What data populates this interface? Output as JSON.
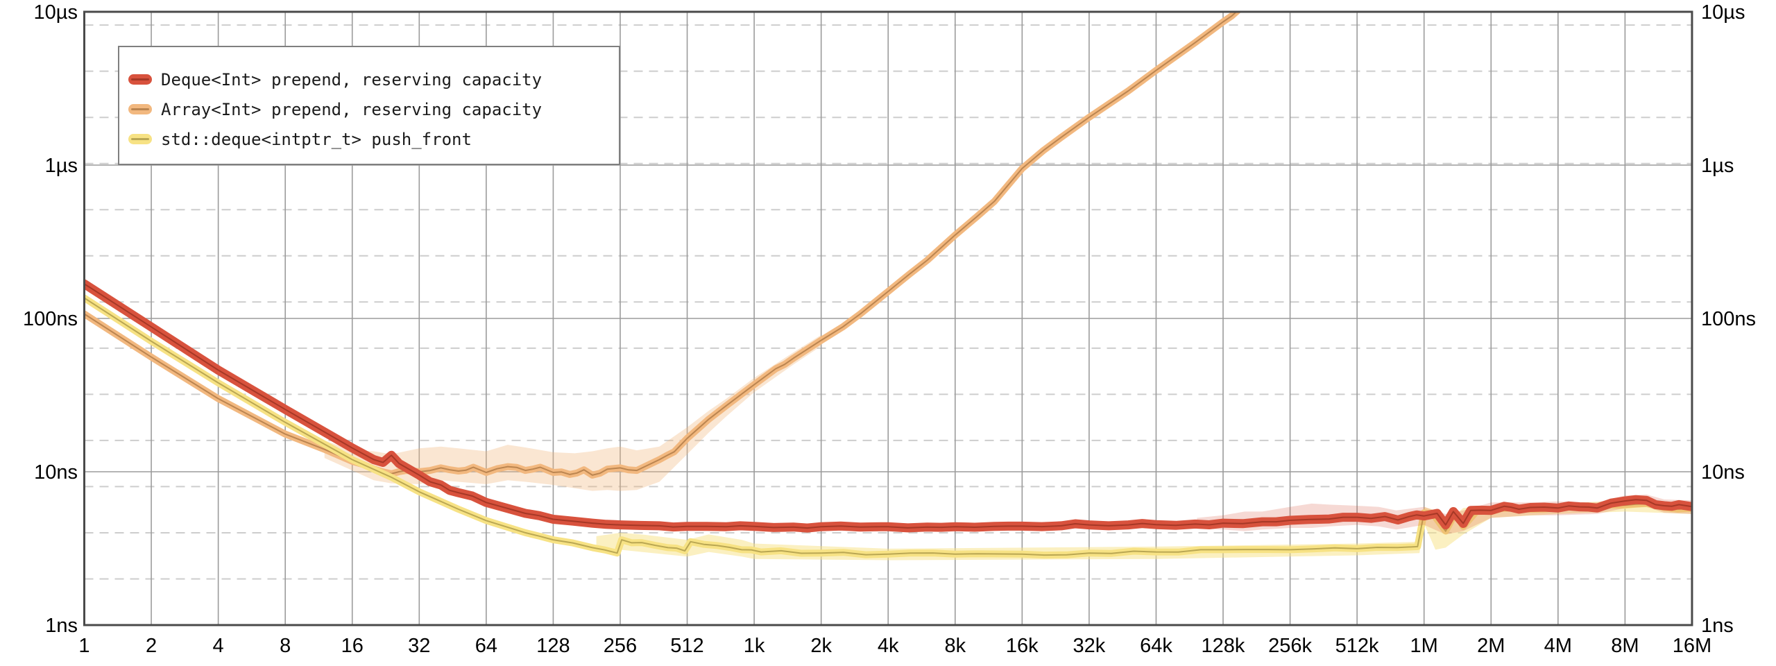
{
  "chart_data": {
    "type": "line",
    "title": "",
    "xlabel": "",
    "ylabel": "",
    "x_scale": "log2",
    "y_scale": "log10",
    "x_range": [
      1,
      16777216
    ],
    "y_range_ns": [
      1,
      10000
    ],
    "grid": {
      "major_color": "#9b9b9b",
      "minor_color": "#cdcdcd",
      "border_color": "#4a4a4a",
      "minor_ns": [
        2,
        4,
        8,
        16,
        32,
        64,
        128,
        256,
        512,
        1024,
        2048,
        4096,
        8192
      ]
    },
    "x_tick_labels": [
      "1",
      "2",
      "4",
      "8",
      "16",
      "32",
      "64",
      "128",
      "256",
      "512",
      "1k",
      "2k",
      "4k",
      "8k",
      "16k",
      "32k",
      "64k",
      "128k",
      "256k",
      "512k",
      "1M",
      "2M",
      "4M",
      "8M",
      "16M"
    ],
    "x_values": [
      1,
      2,
      4,
      8,
      16,
      32,
      64,
      128,
      256,
      512,
      1024,
      2048,
      4096,
      8192,
      16384,
      32768,
      65536,
      131072,
      262144,
      524288,
      1048576,
      2097152,
      4194304,
      8388608,
      16777216
    ],
    "y_tick_labels": [
      "1ns",
      "10ns",
      "100ns",
      "1µs",
      "10µs"
    ],
    "y_tick_ns": [
      1,
      10,
      100,
      1000,
      10000
    ],
    "legend_position": "top-left",
    "series": [
      {
        "name": "Deque<Int> prepend, reserving capacity",
        "color": "#d8523d",
        "center_color": "rgba(125,35,20,0.55)",
        "band_fill": "rgba(216,82,61,0.22)",
        "stroke_width": 13,
        "z": 3,
        "points": [
          [
            1,
            168
          ],
          [
            2,
            88
          ],
          [
            4,
            46
          ],
          [
            8,
            25.5
          ],
          [
            16,
            14.3
          ],
          [
            20,
            12.0
          ],
          [
            22,
            11.5
          ],
          [
            24,
            12.8
          ],
          [
            26,
            11.3
          ],
          [
            32,
            9.5
          ],
          [
            40,
            8.2
          ],
          [
            48,
            7.3
          ],
          [
            64,
            6.3
          ],
          [
            96,
            5.35
          ],
          [
            128,
            4.9
          ],
          [
            192,
            4.62
          ],
          [
            256,
            4.5
          ],
          [
            384,
            4.44
          ],
          [
            512,
            4.4
          ],
          [
            768,
            4.38
          ],
          [
            1024,
            4.4
          ],
          [
            1536,
            4.36
          ],
          [
            2048,
            4.38
          ],
          [
            3072,
            4.36
          ],
          [
            4096,
            4.38
          ],
          [
            6144,
            4.36
          ],
          [
            8192,
            4.38
          ],
          [
            12288,
            4.4
          ],
          [
            16384,
            4.42
          ],
          [
            24576,
            4.44
          ],
          [
            32768,
            4.5
          ],
          [
            49152,
            4.5
          ],
          [
            65536,
            4.52
          ],
          [
            98304,
            4.56
          ],
          [
            131072,
            4.62
          ],
          [
            196608,
            4.72
          ],
          [
            262144,
            4.82
          ],
          [
            393216,
            4.92
          ],
          [
            524288,
            5.05
          ],
          [
            700000,
            5.1
          ],
          [
            800000,
            4.85
          ],
          [
            900000,
            5.1
          ],
          [
            1048576,
            5.15
          ],
          [
            1200000,
            5.35
          ],
          [
            1310720,
            4.5
          ],
          [
            1420000,
            5.5
          ],
          [
            1572864,
            4.6
          ],
          [
            1700000,
            5.6
          ],
          [
            2097152,
            5.6
          ],
          [
            2400000,
            5.95
          ],
          [
            2800000,
            5.7
          ],
          [
            3145728,
            5.85
          ],
          [
            4194304,
            5.8
          ],
          [
            5242880,
            5.9
          ],
          [
            6291456,
            5.8
          ],
          [
            8388608,
            6.45
          ],
          [
            10485760,
            6.5
          ],
          [
            12582912,
            6.0
          ],
          [
            14680064,
            6.1
          ],
          [
            16777216,
            5.92
          ]
        ],
        "band": [
          [
            100000,
            5.0,
            4.25
          ],
          [
            131072,
            5.2,
            4.2
          ],
          [
            163840,
            5.5,
            4.1
          ],
          [
            196608,
            5.5,
            4.2
          ],
          [
            262144,
            5.9,
            4.3
          ],
          [
            327680,
            6.2,
            4.3
          ],
          [
            393216,
            6.1,
            4.4
          ],
          [
            524288,
            6.0,
            4.5
          ],
          [
            655360,
            5.9,
            4.4
          ],
          [
            786432,
            5.6,
            4.2
          ],
          [
            1048576,
            5.9,
            4.5
          ],
          [
            1310720,
            5.3,
            3.9
          ],
          [
            1572864,
            5.6,
            4.1
          ],
          [
            2097152,
            6.3,
            5.0
          ],
          [
            3145728,
            6.3,
            5.2
          ],
          [
            4194304,
            6.4,
            5.2
          ],
          [
            6291456,
            6.3,
            5.3
          ],
          [
            8388608,
            7.0,
            5.8
          ],
          [
            10485760,
            7.1,
            5.9
          ],
          [
            12582912,
            6.6,
            5.4
          ],
          [
            16777216,
            6.5,
            5.3
          ]
        ]
      },
      {
        "name": "Array<Int> prepend, reserving capacity",
        "color": "#f2b87f",
        "center_color": "rgba(120,70,25,0.45)",
        "band_fill": "rgba(242,184,127,0.35)",
        "stroke_width": 10,
        "z": 1,
        "points": [
          [
            1,
            107
          ],
          [
            2,
            56
          ],
          [
            4,
            30
          ],
          [
            8,
            17.6
          ],
          [
            12,
            14
          ],
          [
            16,
            11.7
          ],
          [
            20,
            10.4
          ],
          [
            24,
            9.7
          ],
          [
            28,
            10.2
          ],
          [
            32,
            10.0
          ],
          [
            40,
            10.6
          ],
          [
            48,
            10.1
          ],
          [
            56,
            10.7
          ],
          [
            64,
            9.9
          ],
          [
            80,
            10.8
          ],
          [
            96,
            10.2
          ],
          [
            112,
            10.7
          ],
          [
            128,
            9.9
          ],
          [
            152,
            9.6
          ],
          [
            176,
            10.3
          ],
          [
            192,
            9.5
          ],
          [
            224,
            10.4
          ],
          [
            256,
            10.6
          ],
          [
            304,
            10.2
          ],
          [
            384,
            12.0
          ],
          [
            448,
            13.5
          ],
          [
            512,
            16.5
          ],
          [
            640,
            22
          ],
          [
            768,
            27
          ],
          [
            896,
            32
          ],
          [
            1024,
            37
          ],
          [
            1280,
            47
          ],
          [
            1536,
            55
          ],
          [
            2048,
            72
          ],
          [
            2560,
            88
          ],
          [
            3072,
            107
          ],
          [
            4096,
            150
          ],
          [
            5120,
            195
          ],
          [
            6144,
            240
          ],
          [
            8192,
            350
          ],
          [
            10240,
            460
          ],
          [
            12288,
            580
          ],
          [
            16384,
            950
          ],
          [
            20480,
            1250
          ],
          [
            24576,
            1520
          ],
          [
            32768,
            2050
          ],
          [
            49152,
            3050
          ],
          [
            65536,
            4150
          ],
          [
            98304,
            6300
          ],
          [
            131072,
            8600
          ],
          [
            143360,
            9400
          ],
          [
            157286,
            10600
          ]
        ],
        "band": [
          [
            12,
            16,
            12.3
          ],
          [
            16,
            13.8,
            10.2
          ],
          [
            20,
            13.6,
            8.8
          ],
          [
            24,
            13,
            8.4
          ],
          [
            32,
            14.2,
            8.3
          ],
          [
            40,
            14.6,
            8.8
          ],
          [
            48,
            14.2,
            8.6
          ],
          [
            64,
            13.6,
            8.3
          ],
          [
            80,
            15,
            8.8
          ],
          [
            96,
            14.4,
            8.6
          ],
          [
            128,
            13.4,
            8.2
          ],
          [
            160,
            13.2,
            7.8
          ],
          [
            192,
            13.6,
            7.5
          ],
          [
            224,
            14.2,
            7.6
          ],
          [
            256,
            14.6,
            7.5
          ],
          [
            304,
            13.8,
            7.6
          ],
          [
            384,
            14.6,
            8.6
          ],
          [
            512,
            19.5,
            13
          ],
          [
            640,
            25,
            18
          ],
          [
            768,
            30,
            23
          ],
          [
            1024,
            41,
            33
          ],
          [
            1536,
            60,
            50
          ],
          [
            2048,
            78,
            66
          ]
        ]
      },
      {
        "name": "std::deque<intptr_t> push_front",
        "color": "#f7e284",
        "center_color": "rgba(110,95,25,0.45)",
        "band_fill": "rgba(247,226,132,0.5)",
        "stroke_width": 10,
        "z": 2,
        "points": [
          [
            1,
            136
          ],
          [
            2,
            71
          ],
          [
            4,
            38
          ],
          [
            8,
            21
          ],
          [
            16,
            12
          ],
          [
            24,
            9.2
          ],
          [
            32,
            7.4
          ],
          [
            48,
            5.7
          ],
          [
            64,
            4.8
          ],
          [
            96,
            4.0
          ],
          [
            128,
            3.6
          ],
          [
            192,
            3.2
          ],
          [
            248,
            2.95
          ],
          [
            260,
            3.6
          ],
          [
            320,
            3.45
          ],
          [
            420,
            3.2
          ],
          [
            500,
            3.05
          ],
          [
            530,
            3.5
          ],
          [
            700,
            3.3
          ],
          [
            900,
            3.1
          ],
          [
            1100,
            3.0
          ],
          [
            2048,
            2.95
          ],
          [
            4096,
            2.9
          ],
          [
            8192,
            2.9
          ],
          [
            16384,
            2.9
          ],
          [
            32768,
            2.95
          ],
          [
            65536,
            3.0
          ],
          [
            131072,
            3.1
          ],
          [
            262144,
            3.1
          ],
          [
            524288,
            3.15
          ],
          [
            980000,
            3.25
          ],
          [
            1048576,
            5.4
          ],
          [
            1150000,
            5.3
          ],
          [
            1310720,
            4.1
          ],
          [
            1450000,
            5.4
          ],
          [
            1572864,
            4.4
          ],
          [
            1800000,
            5.5
          ],
          [
            2097152,
            5.5
          ],
          [
            2600000,
            5.8
          ],
          [
            3145728,
            5.7
          ],
          [
            4194304,
            5.8
          ],
          [
            6291456,
            5.9
          ],
          [
            8388608,
            6.05
          ],
          [
            10485760,
            6.2
          ],
          [
            12582912,
            5.85
          ],
          [
            16777216,
            5.78
          ]
        ],
        "band": [
          [
            200,
            3.8,
            3.0
          ],
          [
            256,
            4.0,
            3.1
          ],
          [
            320,
            3.9,
            3.0
          ],
          [
            512,
            3.6,
            2.8
          ],
          [
            640,
            3.9,
            3.0
          ],
          [
            900,
            3.6,
            2.8
          ],
          [
            1024,
            3.4,
            2.7
          ],
          [
            4096,
            3.15,
            2.65
          ],
          [
            65536,
            3.25,
            2.7
          ],
          [
            524288,
            3.4,
            2.85
          ],
          [
            1000000,
            3.5,
            2.95
          ],
          [
            1048576,
            5.9,
            4.6
          ],
          [
            1179648,
            5.6,
            3.1
          ],
          [
            1310720,
            4.6,
            3.2
          ],
          [
            1572864,
            5.8,
            3.9
          ],
          [
            2097152,
            6.0,
            5.0
          ],
          [
            4194304,
            6.2,
            5.3
          ],
          [
            8388608,
            6.5,
            5.5
          ],
          [
            16777216,
            6.2,
            5.3
          ]
        ]
      }
    ]
  },
  "legend": {
    "items": [
      {
        "label": "Deque<Int> prepend, reserving capacity",
        "color": "#d8523d"
      },
      {
        "label": "Array<Int> prepend, reserving capacity",
        "color": "#f2b87f"
      },
      {
        "label": "std::deque<intptr_t> push_front",
        "color": "#f7e284"
      }
    ]
  }
}
